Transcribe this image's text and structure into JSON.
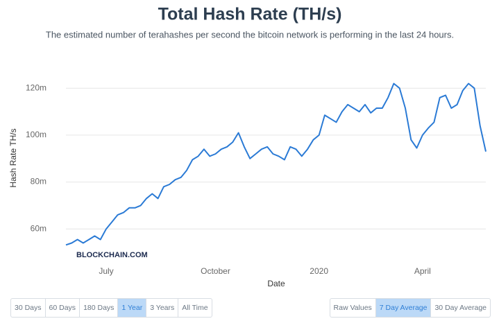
{
  "chart_data": {
    "type": "line",
    "title": "Total Hash Rate (TH/s)",
    "subtitle": "The estimated number of terahashes per second the bitcoin network is performing in the last 24 hours.",
    "x_label": "Date",
    "y_label": "Hash Rate TH/s",
    "watermark": "BLOCKCHAIN.COM",
    "categories": [
      null,
      null,
      null,
      null,
      null,
      null,
      null,
      "July",
      null,
      null,
      null,
      null,
      null,
      null,
      null,
      null,
      null,
      null,
      null,
      null,
      null,
      null,
      null,
      null,
      null,
      null,
      "October",
      null,
      null,
      null,
      null,
      null,
      null,
      null,
      null,
      null,
      null,
      null,
      null,
      null,
      null,
      null,
      null,
      null,
      "2020",
      null,
      null,
      null,
      null,
      null,
      null,
      null,
      null,
      null,
      null,
      null,
      null,
      null,
      null,
      null,
      null,
      null,
      "April",
      null,
      null,
      null,
      null,
      null,
      null,
      null,
      null,
      null,
      null,
      null
    ],
    "series": [
      {
        "name": "Hash Rate",
        "color": "#2a7ad5",
        "values": [
          53200000,
          54000000,
          55500000,
          54000000,
          55500000,
          57000000,
          55500000,
          60000000,
          63000000,
          66000000,
          67000000,
          69000000,
          69000000,
          70000000,
          73000000,
          75000000,
          73000000,
          78000000,
          79000000,
          81000000,
          82000000,
          85000000,
          89500000,
          91000000,
          94000000,
          91000000,
          92000000,
          94000000,
          95000000,
          97000000,
          101000000,
          95000000,
          90000000,
          92000000,
          94000000,
          95000000,
          92000000,
          91000000,
          89500000,
          95000000,
          94000000,
          91000000,
          94000000,
          98000000,
          100000000,
          108500000,
          107000000,
          105500000,
          110000000,
          113000000,
          111500000,
          110000000,
          113000000,
          109500000,
          111500000,
          111500000,
          116000000,
          122000000,
          120000000,
          111500000,
          98000000,
          94500000,
          100000000,
          103000000,
          105500000,
          116000000,
          117000000,
          111500000,
          113000000,
          119000000,
          122000000,
          120000000,
          104000000,
          93000000
        ]
      }
    ],
    "ylim": [
      45000000,
      131000000
    ],
    "yticks": [
      {
        "value": 60000000,
        "label": "60m"
      },
      {
        "value": 80000000,
        "label": "80m"
      },
      {
        "value": 100000000,
        "label": "100m"
      },
      {
        "value": 120000000,
        "label": "120m"
      }
    ],
    "grid": true
  },
  "controls": {
    "ranges": [
      {
        "label": "30 Days"
      },
      {
        "label": "60 Days"
      },
      {
        "label": "180 Days"
      },
      {
        "label": "1 Year",
        "selected": true
      },
      {
        "label": "3 Years"
      },
      {
        "label": "All Time"
      }
    ],
    "averages": [
      {
        "label": "Raw Values"
      },
      {
        "label": "7 Day Average",
        "selected": true
      },
      {
        "label": "30 Day Average"
      }
    ]
  }
}
